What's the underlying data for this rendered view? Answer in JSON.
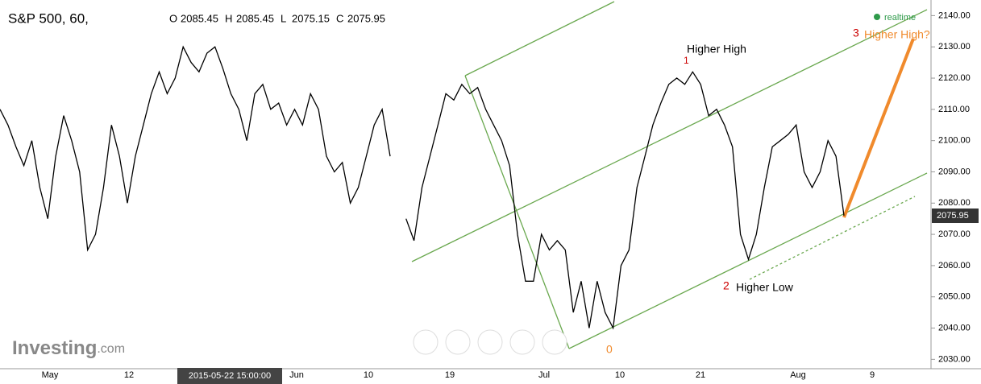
{
  "chart_data": {
    "type": "line",
    "title": "S&P 500, 60,",
    "ohlc": [
      {
        "label": "O",
        "value": 2085.45
      },
      {
        "label": "H",
        "value": 2085.45
      },
      {
        "label": "L",
        "value": 2075.15
      },
      {
        "label": "C",
        "value": 2075.95
      }
    ],
    "status": "realtime",
    "brand": "Investing",
    "brand_suffix": ".com",
    "crosshair_time": "2015-05-22 15:00:00",
    "last": 2075.95,
    "xlabels": [
      "May",
      "12",
      "Jun",
      "10",
      "19",
      "Jul",
      "10",
      "21",
      "Aug",
      "9"
    ],
    "series": [
      {
        "name": "S&P 500",
        "color": "#000000",
        "values": [
          2110,
          2105,
          2098,
          2092,
          2100,
          2085,
          2075,
          2095,
          2108,
          2100,
          2090,
          2065,
          2070,
          2085,
          2105,
          2095,
          2080,
          2095,
          2105,
          2115,
          2122,
          2115,
          2120,
          2130,
          2125,
          2122,
          2128,
          2130,
          2123,
          2115,
          2110,
          2100,
          2115,
          2118,
          2110,
          2112,
          2105,
          2110,
          2105,
          2115,
          2110,
          2095,
          2090,
          2093,
          2080,
          2085,
          2095,
          2105,
          2110,
          2095,
          null,
          2075,
          2068,
          2085,
          2095,
          2105,
          2115,
          2113,
          2118,
          2115,
          2117,
          2110,
          2105,
          2100,
          2092,
          2070,
          2055,
          2055,
          2070,
          2065,
          2068,
          2065,
          2045,
          2055,
          2040,
          2055,
          2045,
          2040,
          2060,
          2065,
          2085,
          2095,
          2105,
          2112,
          2118,
          2120,
          2118,
          2122,
          2118,
          2108,
          2110,
          2105,
          2098,
          2070,
          2062,
          2070,
          2085,
          2098,
          2100,
          2102,
          2105,
          2090,
          2085,
          2090,
          2100,
          2095,
          2076
        ]
      }
    ],
    "ylim": [
      2027,
      2145
    ],
    "yticks": [
      {
        "value": 2030,
        "label": "2030.00"
      },
      {
        "value": 2040,
        "label": "2040.00"
      },
      {
        "value": 2050,
        "label": "2050.00"
      },
      {
        "value": 2060,
        "label": "2060.00"
      },
      {
        "value": 2070,
        "label": "2070.00"
      },
      {
        "value": 2080,
        "label": "2080.00"
      },
      {
        "value": 2090,
        "label": "2090.00"
      },
      {
        "value": 2100,
        "label": "2100.00"
      },
      {
        "value": 2110,
        "label": "2110.00"
      },
      {
        "value": 2120,
        "label": "2120.00"
      },
      {
        "value": 2130,
        "label": "2130.00"
      },
      {
        "value": 2140,
        "label": "2140.00"
      }
    ],
    "annotations": {
      "p0": "0",
      "p1": "1",
      "p1_text": "Higher High",
      "p2": "2",
      "p2_text": "Higher Low",
      "p3": "3",
      "p3_text": "Higher High?"
    }
  }
}
